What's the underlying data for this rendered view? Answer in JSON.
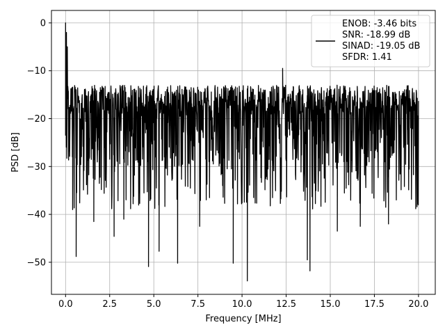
{
  "chart_data": {
    "type": "line",
    "xlabel": "Frequency [MHz]",
    "ylabel": "PSD [dB]",
    "xlim": [
      -0.8,
      20.95
    ],
    "ylim": [
      -56.7,
      2.6
    ],
    "xticks": [
      0.0,
      2.5,
      5.0,
      7.5,
      10.0,
      12.5,
      15.0,
      17.5,
      20.0
    ],
    "xtick_labels": [
      "0.0",
      "2.5",
      "5.0",
      "7.5",
      "10.0",
      "12.5",
      "15.0",
      "17.5",
      "20.0"
    ],
    "yticks": [
      0,
      -10,
      -20,
      -30,
      -40,
      -50
    ],
    "ytick_labels": [
      "0",
      "−10",
      "−20",
      "−30",
      "−40",
      "−50"
    ],
    "grid": true,
    "legend_position": "top-right",
    "series": [
      {
        "name": "ENOB: -3.46 bits\nSNR: -18.99 dB\nSINAD: -19.05 dB\nSFDR: 1.41",
        "legend_lines": [
          "ENOB: -3.46 bits",
          "SNR: -18.99 dB",
          "SINAD: -19.05 dB",
          "SFDR: 1.41"
        ],
        "color": "#000000",
        "x_range": [
          0.0,
          20.0
        ],
        "typical_band": [
          -30,
          -13
        ],
        "peak_points": [
          [
            0.0,
            0.0
          ],
          [
            0.05,
            -2.0
          ],
          [
            0.1,
            -5.0
          ],
          [
            12.3,
            -9.5
          ]
        ],
        "dip_points": [
          [
            0.4,
            -39.0
          ],
          [
            0.6,
            -48.8
          ],
          [
            1.6,
            -41.5
          ],
          [
            2.75,
            -44.6
          ],
          [
            3.3,
            -41.0
          ],
          [
            4.7,
            -50.9
          ],
          [
            5.3,
            -47.7
          ],
          [
            6.35,
            -50.2
          ],
          [
            7.6,
            -42.5
          ],
          [
            9.5,
            -50.2
          ],
          [
            10.3,
            -53.9
          ],
          [
            13.7,
            -49.5
          ],
          [
            13.85,
            -51.8
          ],
          [
            15.4,
            -43.5
          ],
          [
            16.7,
            -42.5
          ],
          [
            18.3,
            -42.0
          ]
        ]
      }
    ]
  }
}
